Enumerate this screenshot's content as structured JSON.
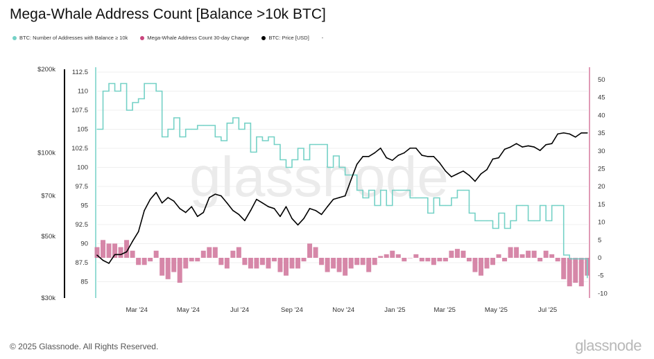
{
  "title": "Mega-Whale Address Count [Balance >10k BTC]",
  "legend": [
    {
      "label": "BTC: Number of Addresses with Balance ≥ 10k",
      "color": "#74d1c6"
    },
    {
      "label": "Mega-Whale Address Count 30-day Change",
      "color": "#c9457d"
    },
    {
      "label": "BTC: Price [USD]",
      "color": "#000000"
    },
    {
      "label": "-",
      "color": ""
    }
  ],
  "footer": "© 2025 Glassnode. All Rights Reserved.",
  "logo": "glassnode",
  "watermark": "glassnode",
  "chart_data": {
    "type": "line",
    "title": "Mega-Whale Address Count [Balance >10k BTC]",
    "grid": true,
    "legend_position": "top-left",
    "x_ticks": [
      "Mar '24",
      "May '24",
      "Jul '24",
      "Sep '24",
      "Nov '24",
      "Jan '25",
      "Mar '25",
      "May '25",
      "Jul '25"
    ],
    "x_tick_dates": [
      "2024-03-01",
      "2024-05-01",
      "2024-07-01",
      "2024-09-01",
      "2024-11-01",
      "2025-01-01",
      "2025-03-01",
      "2025-05-01",
      "2025-07-01"
    ],
    "x_range": [
      "2024-01-14",
      "2025-08-18"
    ],
    "price_axis": {
      "scale": "log",
      "range": [
        30000,
        200000
      ],
      "ticks": [
        "$200k",
        "$100k",
        "$70k",
        "$50k",
        "$30k"
      ],
      "tick_values": [
        200000,
        100000,
        70000,
        50000,
        30000
      ],
      "side": "left-outer"
    },
    "count_axis": {
      "range": [
        83.5,
        113
      ],
      "ticks": [
        "112.5",
        "110",
        "107.5",
        "105",
        "102.5",
        "100",
        "97.5",
        "95",
        "92.5",
        "90",
        "87.5",
        "85"
      ],
      "tick_values": [
        112.5,
        110,
        107.5,
        105,
        102.5,
        100,
        97.5,
        95,
        92.5,
        90,
        87.5,
        85
      ],
      "side": "left-inner"
    },
    "change_axis": {
      "range": [
        -10,
        51
      ],
      "ticks": [
        "50",
        "45",
        "40",
        "35",
        "30",
        "25",
        "20",
        "15",
        "10",
        "5",
        "0",
        "-5",
        "-10"
      ],
      "tick_values": [
        50,
        45,
        40,
        35,
        30,
        25,
        20,
        15,
        10,
        5,
        0,
        -5,
        -10
      ],
      "side": "right"
    },
    "x": [
      "2024-01-14",
      "2024-01-21",
      "2024-01-28",
      "2024-02-04",
      "2024-02-11",
      "2024-02-18",
      "2024-02-25",
      "2024-03-03",
      "2024-03-10",
      "2024-03-17",
      "2024-03-24",
      "2024-03-31",
      "2024-04-07",
      "2024-04-14",
      "2024-04-21",
      "2024-04-28",
      "2024-05-05",
      "2024-05-12",
      "2024-05-19",
      "2024-05-26",
      "2024-06-02",
      "2024-06-09",
      "2024-06-16",
      "2024-06-23",
      "2024-06-30",
      "2024-07-07",
      "2024-07-14",
      "2024-07-21",
      "2024-07-28",
      "2024-08-04",
      "2024-08-11",
      "2024-08-18",
      "2024-08-25",
      "2024-09-01",
      "2024-09-08",
      "2024-09-15",
      "2024-09-22",
      "2024-09-29",
      "2024-10-06",
      "2024-10-13",
      "2024-10-20",
      "2024-10-27",
      "2024-11-03",
      "2024-11-10",
      "2024-11-17",
      "2024-11-24",
      "2024-12-01",
      "2024-12-08",
      "2024-12-15",
      "2024-12-22",
      "2024-12-29",
      "2025-01-05",
      "2025-01-12",
      "2025-01-19",
      "2025-01-26",
      "2025-02-02",
      "2025-02-09",
      "2025-02-16",
      "2025-02-23",
      "2025-03-02",
      "2025-03-09",
      "2025-03-16",
      "2025-03-23",
      "2025-03-30",
      "2025-04-06",
      "2025-04-13",
      "2025-04-20",
      "2025-04-27",
      "2025-05-04",
      "2025-05-11",
      "2025-05-18",
      "2025-05-25",
      "2025-06-01",
      "2025-06-08",
      "2025-06-15",
      "2025-06-22",
      "2025-06-29",
      "2025-07-06",
      "2025-07-13",
      "2025-07-20",
      "2025-07-27",
      "2025-08-03",
      "2025-08-10",
      "2025-08-17"
    ],
    "series": [
      {
        "name": "BTC: Number of Addresses with Balance ≥ 10k",
        "axis": "count",
        "color": "#74d1c6",
        "type": "step-line",
        "values": [
          105,
          110,
          111,
          110,
          111,
          107.5,
          108.5,
          109,
          111,
          111,
          110,
          104,
          105,
          106.5,
          104,
          105,
          105,
          105.5,
          105.5,
          105.5,
          104,
          103.5,
          105.8,
          106.5,
          105,
          105.8,
          102,
          104,
          103.5,
          104,
          103,
          101,
          100,
          101,
          102.5,
          101,
          103,
          103,
          103,
          100,
          101.5,
          100,
          99,
          99,
          97,
          96,
          97,
          95,
          97,
          95,
          97,
          97,
          97,
          96,
          96,
          96,
          94,
          96,
          95,
          95,
          96,
          97,
          97,
          94,
          93,
          93,
          93,
          92,
          94,
          92,
          93,
          95,
          95,
          93,
          93,
          95,
          93,
          95,
          95,
          88.5,
          88,
          88,
          88,
          85.5
        ]
      },
      {
        "name": "Mega-Whale Address Count 30-day Change",
        "axis": "change",
        "color": "#c9457d",
        "type": "bar",
        "values": [
          3,
          5,
          4,
          4,
          3,
          5,
          2,
          -2,
          -2,
          -1,
          2,
          -5,
          -6,
          -4,
          -7,
          -3,
          -1,
          -1,
          2,
          3,
          3,
          -2,
          -3,
          2,
          3,
          -2,
          -3,
          -3,
          -2,
          -3,
          -1,
          -4,
          -5,
          -3,
          -3,
          -1,
          4,
          3,
          -2,
          -4,
          -3,
          -4,
          -5,
          -3,
          -2,
          -2,
          -4,
          -2,
          0.5,
          1,
          2,
          1,
          -1,
          0,
          1,
          -1,
          -1,
          -2,
          -1,
          -1,
          2,
          2.5,
          2,
          -1,
          -4,
          -5,
          -3,
          -2,
          1,
          -1,
          3,
          3,
          1,
          2,
          2,
          -1,
          2,
          1,
          -1,
          -6,
          -8,
          -7,
          -8,
          -5
        ]
      },
      {
        "name": "BTC: Price [USD]",
        "axis": "price",
        "color": "#000000",
        "type": "line",
        "values": [
          42800,
          41000,
          40000,
          43000,
          43000,
          44000,
          48000,
          52000,
          62000,
          68000,
          72000,
          66000,
          69000,
          67000,
          63000,
          61000,
          64000,
          59000,
          61000,
          69000,
          71000,
          70000,
          66000,
          62000,
          60000,
          57000,
          62000,
          68000,
          66000,
          64000,
          63000,
          59000,
          64000,
          58000,
          55000,
          58000,
          63000,
          62000,
          60000,
          64000,
          68000,
          69000,
          70000,
          80000,
          91000,
          97000,
          97000,
          100000,
          104000,
          96000,
          94000,
          98000,
          100000,
          104000,
          104000,
          98000,
          97000,
          97000,
          92000,
          86000,
          82000,
          84000,
          86000,
          83000,
          79000,
          84000,
          87000,
          95000,
          96000,
          103000,
          105000,
          108000,
          105000,
          106000,
          105000,
          102000,
          107000,
          108000,
          117000,
          118000,
          117000,
          114000,
          118000,
          118000
        ]
      }
    ]
  }
}
